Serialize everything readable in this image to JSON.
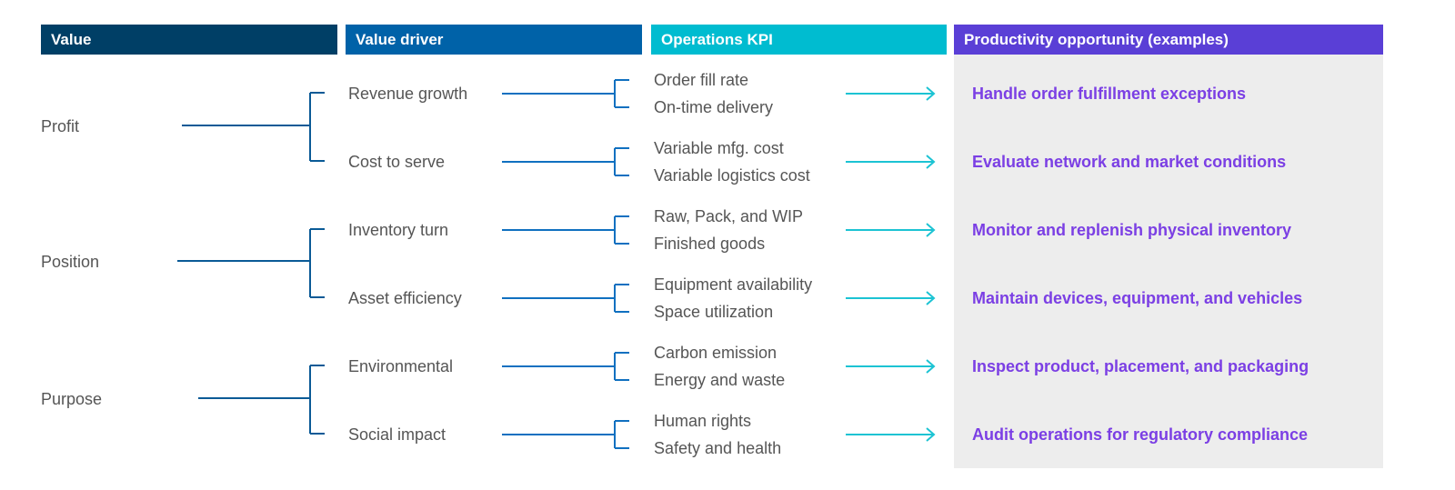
{
  "headers": {
    "value": "Value",
    "driver": "Value driver",
    "kpi": "Operations KPI",
    "opportunity": "Productivity opportunity (examples)"
  },
  "colors": {
    "value": "#003f66",
    "driver": "#0062a8",
    "kpi": "#00bcd0",
    "opportunity": "#5a3fd6",
    "line": "#0a5a96",
    "arrow": "#1cc3d3",
    "opp_text": "#7b3fe4"
  },
  "values": [
    {
      "label": "Profit",
      "drivers": [
        {
          "label": "Revenue growth",
          "kpis": [
            "Order fill rate",
            "On-time delivery"
          ],
          "opportunity": "Handle order fulfillment exceptions"
        },
        {
          "label": "Cost to serve",
          "kpis": [
            "Variable mfg. cost",
            "Variable logistics cost"
          ],
          "opportunity": "Evaluate network and market conditions"
        }
      ]
    },
    {
      "label": "Position",
      "drivers": [
        {
          "label": "Inventory turn",
          "kpis": [
            "Raw, Pack, and WIP",
            "Finished goods"
          ],
          "opportunity": "Monitor and replenish physical inventory"
        },
        {
          "label": "Asset efficiency",
          "kpis": [
            "Equipment availability",
            "Space utilization"
          ],
          "opportunity": "Maintain devices, equipment, and vehicles"
        }
      ]
    },
    {
      "label": "Purpose",
      "drivers": [
        {
          "label": "Environmental",
          "kpis": [
            "Carbon emission",
            "Energy and waste"
          ],
          "opportunity": "Inspect product, placement, and packaging"
        },
        {
          "label": "Social impact",
          "kpis": [
            "Human rights",
            "Safety and health"
          ],
          "opportunity": "Audit operations for regulatory compliance"
        }
      ]
    }
  ]
}
